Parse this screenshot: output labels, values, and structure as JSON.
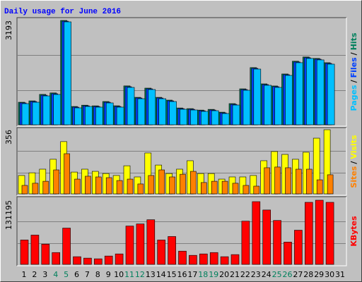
{
  "chart_data": [
    {
      "type": "bar",
      "title": "Daily usage for June 2016",
      "title_color": "#0000ff",
      "ylim": [
        0,
        3193
      ],
      "yticks": [
        3193
      ],
      "legend_separator": "/",
      "series": [
        {
          "name": "Hits",
          "color": "#00805c",
          "values": [
            690,
            732,
            930,
            975,
            3193,
            560,
            600,
            580,
            712,
            582,
            1190,
            840,
            1122,
            840,
            755,
            515,
            495,
            450,
            472,
            386,
            648,
            1100,
            1750,
            1252,
            1188,
            1555,
            1945,
            2075,
            2030,
            1900,
            0
          ]
        },
        {
          "name": "Files",
          "color": "#0040ff",
          "values": [
            670,
            712,
            905,
            950,
            3170,
            540,
            580,
            560,
            690,
            560,
            1165,
            820,
            1100,
            820,
            733,
            495,
            474,
            430,
            452,
            365,
            625,
            1078,
            1727,
            1230,
            1166,
            1533,
            1922,
            2052,
            2008,
            1878,
            0
          ]
        },
        {
          "name": "Pages",
          "color": "#00c0ff",
          "values": [
            647,
            690,
            884,
            928,
            3150,
            518,
            561,
            540,
            669,
            540,
            1144,
            798,
            1079,
            798,
            712,
            475,
            453,
            410,
            431,
            345,
            604,
            1057,
            1705,
            1209,
            1144,
            1511,
            1900,
            2030,
            1986,
            1856,
            0
          ]
        }
      ]
    },
    {
      "type": "bar",
      "ylim": [
        0,
        356
      ],
      "yticks": [
        356
      ],
      "legend_separator": "/",
      "series": [
        {
          "name": "Visits",
          "color": "#ffff00",
          "values": [
            102,
            117,
            137,
            192,
            290,
            121,
            137,
            125,
            113,
            102,
            156,
            94,
            227,
            160,
            113,
            137,
            184,
            113,
            113,
            82,
            94,
            94,
            102,
            184,
            235,
            219,
            192,
            231,
            309,
            356,
            0
          ]
        },
        {
          "name": "Sites",
          "color": "#ff8000",
          "values": [
            47,
            59,
            70,
            133,
            223,
            82,
            98,
            94,
            90,
            74,
            82,
            55,
            102,
            133,
            94,
            109,
            125,
            63,
            70,
            70,
            59,
            47,
            43,
            145,
            149,
            145,
            137,
            137,
            78,
            106,
            0
          ]
        }
      ]
    },
    {
      "type": "bar",
      "ylim": [
        0,
        131195
      ],
      "yticks": [
        131195
      ],
      "categories": [
        "1",
        "2",
        "3",
        "4",
        "5",
        "6",
        "7",
        "8",
        "9",
        "10",
        "11",
        "12",
        "13",
        "14",
        "15",
        "16",
        "17",
        "18",
        "19",
        "20",
        "21",
        "22",
        "23",
        "24",
        "25",
        "26",
        "27",
        "28",
        "29",
        "30",
        "31"
      ],
      "category_colors": [
        "#000000",
        "#000000",
        "#000000",
        "#00805c",
        "#00805c",
        "#000000",
        "#000000",
        "#000000",
        "#000000",
        "#000000",
        "#00805c",
        "#00805c",
        "#000000",
        "#000000",
        "#000000",
        "#000000",
        "#000000",
        "#00805c",
        "#00805c",
        "#000000",
        "#000000",
        "#000000",
        "#000000",
        "#000000",
        "#00805c",
        "#00805c",
        "#000000",
        "#000000",
        "#000000",
        "#000000",
        "#000000"
      ],
      "series": [
        {
          "name": "KBytes",
          "color": "#ff0000",
          "values": [
            49900,
            59900,
            41400,
            24200,
            74200,
            15700,
            12800,
            11400,
            17100,
            21400,
            78400,
            82700,
            91300,
            49900,
            57000,
            27100,
            18500,
            21400,
            24200,
            15700,
            20000,
            88400,
            128300,
            111200,
            89800,
            45600,
            69900,
            126900,
            131195,
            126900,
            0
          ]
        }
      ]
    }
  ]
}
